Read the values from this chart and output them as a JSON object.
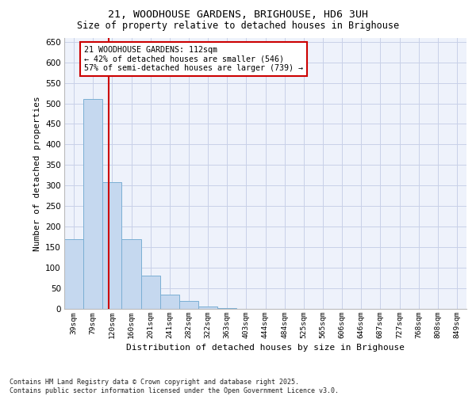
{
  "title_line1": "21, WOODHOUSE GARDENS, BRIGHOUSE, HD6 3UH",
  "title_line2": "Size of property relative to detached houses in Brighouse",
  "xlabel": "Distribution of detached houses by size in Brighouse",
  "ylabel": "Number of detached properties",
  "bar_labels": [
    "39sqm",
    "79sqm",
    "120sqm",
    "160sqm",
    "201sqm",
    "241sqm",
    "282sqm",
    "322sqm",
    "363sqm",
    "403sqm",
    "444sqm",
    "484sqm",
    "525sqm",
    "565sqm",
    "606sqm",
    "646sqm",
    "687sqm",
    "727sqm",
    "768sqm",
    "808sqm",
    "849sqm"
  ],
  "bar_values": [
    170,
    510,
    308,
    170,
    80,
    35,
    20,
    5,
    2,
    0,
    0,
    0,
    0,
    0,
    0,
    0,
    0,
    0,
    0,
    0,
    0
  ],
  "bar_color": "#c5d8ef",
  "bar_edge_color": "#7bafd4",
  "ylim": [
    0,
    660
  ],
  "yticks": [
    0,
    50,
    100,
    150,
    200,
    250,
    300,
    350,
    400,
    450,
    500,
    550,
    600,
    650
  ],
  "vline_color": "#cc0000",
  "vline_x_index": 1.83,
  "annotation_text": "21 WOODHOUSE GARDENS: 112sqm\n← 42% of detached houses are smaller (546)\n57% of semi-detached houses are larger (739) →",
  "annotation_box_color": "#ffffff",
  "annotation_box_edge": "#cc0000",
  "footer_text": "Contains HM Land Registry data © Crown copyright and database right 2025.\nContains public sector information licensed under the Open Government Licence v3.0.",
  "background_color": "#eef2fb",
  "grid_color": "#c8d0e8",
  "fig_bg": "#ffffff"
}
